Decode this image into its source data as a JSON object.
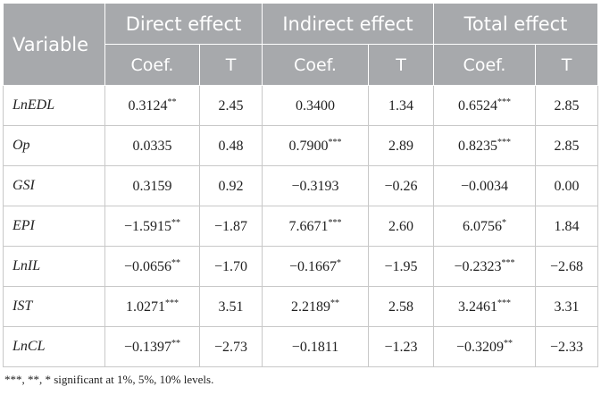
{
  "header": {
    "variable": "Variable",
    "groups": [
      "Direct effect",
      "Indirect effect",
      "Total effect"
    ],
    "sub": [
      "Coef.",
      "T",
      "Coef.",
      "T",
      "Coef.",
      "T"
    ]
  },
  "rows": [
    {
      "var": "LnEDL",
      "cells": [
        [
          "0.3124",
          "**"
        ],
        [
          "2.45",
          ""
        ],
        [
          "0.3400",
          ""
        ],
        [
          "1.34",
          ""
        ],
        [
          "0.6524",
          "***"
        ],
        [
          "2.85",
          ""
        ]
      ]
    },
    {
      "var": "Op",
      "cells": [
        [
          "0.0335",
          ""
        ],
        [
          "0.48",
          ""
        ],
        [
          "0.7900",
          "***"
        ],
        [
          "2.89",
          ""
        ],
        [
          "0.8235",
          "***"
        ],
        [
          "2.85",
          ""
        ]
      ]
    },
    {
      "var": "GSI",
      "cells": [
        [
          "0.3159",
          ""
        ],
        [
          "0.92",
          ""
        ],
        [
          "−0.3193",
          ""
        ],
        [
          "−0.26",
          ""
        ],
        [
          "−0.0034",
          ""
        ],
        [
          "0.00",
          ""
        ]
      ]
    },
    {
      "var": "EPI",
      "cells": [
        [
          "−1.5915",
          "**"
        ],
        [
          "−1.87",
          ""
        ],
        [
          "7.6671",
          "***"
        ],
        [
          "2.60",
          ""
        ],
        [
          "6.0756",
          "*"
        ],
        [
          "1.84",
          ""
        ]
      ]
    },
    {
      "var": "LnIL",
      "cells": [
        [
          "−0.0656",
          "**"
        ],
        [
          "−1.70",
          ""
        ],
        [
          "−0.1667",
          "*"
        ],
        [
          "−1.95",
          ""
        ],
        [
          "−0.2323",
          "***"
        ],
        [
          "−2.68",
          ""
        ]
      ]
    },
    {
      "var": "IST",
      "cells": [
        [
          "1.0271",
          "***"
        ],
        [
          "3.51",
          ""
        ],
        [
          "2.2189",
          "**"
        ],
        [
          "2.58",
          ""
        ],
        [
          "3.2461",
          "***"
        ],
        [
          "3.31",
          ""
        ]
      ]
    },
    {
      "var": "LnCL",
      "cells": [
        [
          "−0.1397",
          "**"
        ],
        [
          "−2.73",
          ""
        ],
        [
          "−0.1811",
          ""
        ],
        [
          "−1.23",
          ""
        ],
        [
          "−0.3209",
          "**"
        ],
        [
          "−2.33",
          ""
        ]
      ]
    }
  ],
  "footnote": "***, **, * significant at 1%, 5%, 10% levels."
}
